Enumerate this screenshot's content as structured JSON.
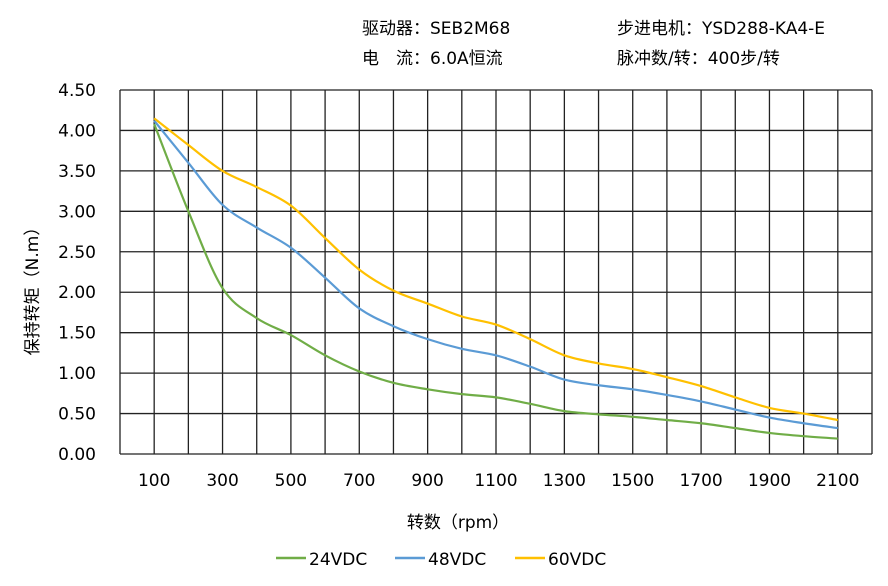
{
  "header": {
    "driver": "驱动器：SEB2M68",
    "motor": "步进电机：YSD288-KA4-E",
    "current": "电　流：6.0A恒流",
    "pulses": "脉冲数/转：400步/转"
  },
  "chart_data": {
    "type": "line",
    "title": "",
    "xlabel": "转数（rpm）",
    "ylabel": "保持转矩（N.m）",
    "xlim": [
      0,
      2200
    ],
    "ylim": [
      0,
      4.5
    ],
    "grid": true,
    "legend": "bottom",
    "x_ticks": [
      "100",
      "300",
      "500",
      "700",
      "900",
      "1100",
      "1300",
      "1500",
      "1700",
      "1900",
      "2100"
    ],
    "y_ticks": [
      "0.00",
      "0.50",
      "1.00",
      "1.50",
      "2.00",
      "2.50",
      "3.00",
      "3.50",
      "4.00",
      "4.50"
    ],
    "x": [
      100,
      200,
      300,
      400,
      500,
      600,
      700,
      800,
      900,
      1000,
      1100,
      1200,
      1300,
      1400,
      1500,
      1600,
      1700,
      1800,
      1900,
      2000,
      2100
    ],
    "series": [
      {
        "name": "24VDC",
        "color": "#70AD47",
        "values": [
          4.08,
          3.0,
          2.05,
          1.68,
          1.47,
          1.22,
          1.02,
          0.88,
          0.8,
          0.74,
          0.7,
          0.62,
          0.53,
          0.49,
          0.46,
          0.42,
          0.38,
          0.32,
          0.26,
          0.22,
          0.19
        ]
      },
      {
        "name": "48VDC",
        "color": "#5B9BD5",
        "values": [
          4.12,
          3.6,
          3.08,
          2.8,
          2.55,
          2.18,
          1.8,
          1.58,
          1.42,
          1.3,
          1.22,
          1.08,
          0.92,
          0.85,
          0.8,
          0.73,
          0.65,
          0.55,
          0.45,
          0.38,
          0.32
        ]
      },
      {
        "name": "60VDC",
        "color": "#FFC000",
        "values": [
          4.15,
          3.82,
          3.5,
          3.3,
          3.07,
          2.67,
          2.28,
          2.02,
          1.86,
          1.7,
          1.6,
          1.42,
          1.22,
          1.12,
          1.05,
          0.95,
          0.84,
          0.7,
          0.57,
          0.5,
          0.42
        ]
      }
    ]
  }
}
